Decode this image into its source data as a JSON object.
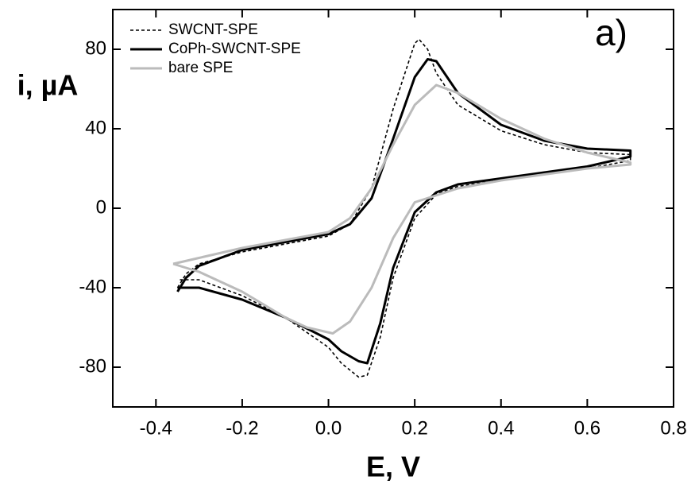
{
  "chart_data": {
    "type": "line",
    "annotation": "a)",
    "x_label": "E, V",
    "y_label": "i, µA",
    "xlim": [
      -0.5,
      0.8
    ],
    "ylim": [
      -100,
      100
    ],
    "xticks": [
      -0.4,
      -0.2,
      {
        "value": 0,
        "label": "0.0"
      },
      0.2,
      0.4,
      0.6,
      0.8
    ],
    "yticks": [
      -80,
      -40,
      0,
      40,
      80
    ],
    "legend": "top-left",
    "series": [
      {
        "name": "SWCNT-SPE",
        "color": "#000000",
        "dash": "4,3",
        "width": 1.6,
        "x": [
          -0.35,
          -0.33,
          -0.3,
          -0.2,
          -0.1,
          0.0,
          0.05,
          0.1,
          0.15,
          0.2,
          0.21,
          0.23,
          0.25,
          0.3,
          0.4,
          0.5,
          0.6,
          0.7,
          0.7,
          0.6,
          0.5,
          0.4,
          0.3,
          0.25,
          0.2,
          0.15,
          0.12,
          0.09,
          0.07,
          0.03,
          0.0,
          -0.1,
          -0.2,
          -0.3,
          -0.35
        ],
        "values": [
          -40,
          -33,
          -28,
          -22,
          -18,
          -14,
          -8,
          10,
          50,
          83,
          85,
          80,
          68,
          52,
          39,
          32,
          28,
          27,
          24,
          20,
          17,
          14,
          11,
          7,
          -5,
          -35,
          -65,
          -84,
          -85,
          -78,
          -70,
          -55,
          -44,
          -36,
          -36
        ]
      },
      {
        "name": "CoPh-SWCNT-SPE",
        "color": "#000000",
        "dash": "none",
        "width": 3,
        "x": [
          -0.35,
          -0.33,
          -0.3,
          -0.2,
          -0.1,
          0.0,
          0.05,
          0.1,
          0.15,
          0.2,
          0.23,
          0.25,
          0.3,
          0.4,
          0.5,
          0.6,
          0.7,
          0.7,
          0.6,
          0.5,
          0.4,
          0.3,
          0.25,
          0.2,
          0.15,
          0.12,
          0.09,
          0.07,
          0.03,
          0.0,
          -0.1,
          -0.2,
          -0.3,
          -0.35
        ],
        "values": [
          -42,
          -35,
          -29,
          -21,
          -17,
          -13,
          -8,
          5,
          35,
          66,
          75,
          74,
          58,
          42,
          34,
          30,
          29,
          26,
          21,
          18,
          15,
          12,
          8,
          -2,
          -30,
          -58,
          -78,
          -77,
          -72,
          -66,
          -55,
          -46,
          -40,
          -40
        ]
      },
      {
        "name": "bare SPE",
        "color": "#bbbbbb",
        "dash": "none",
        "width": 3,
        "x": [
          -0.36,
          -0.3,
          -0.2,
          -0.1,
          0.0,
          0.05,
          0.1,
          0.15,
          0.2,
          0.25,
          0.3,
          0.4,
          0.5,
          0.6,
          0.7,
          0.7,
          0.6,
          0.5,
          0.4,
          0.3,
          0.2,
          0.15,
          0.1,
          0.05,
          0.01,
          -0.05,
          -0.1,
          -0.2,
          -0.3,
          -0.36
        ],
        "values": [
          -28,
          -25,
          -20,
          -16,
          -12,
          -5,
          10,
          32,
          52,
          62,
          58,
          45,
          35,
          28,
          23,
          22,
          20,
          17,
          14,
          10,
          3,
          -15,
          -40,
          -57,
          -63,
          -60,
          -55,
          -42,
          -32,
          -28
        ]
      }
    ]
  }
}
